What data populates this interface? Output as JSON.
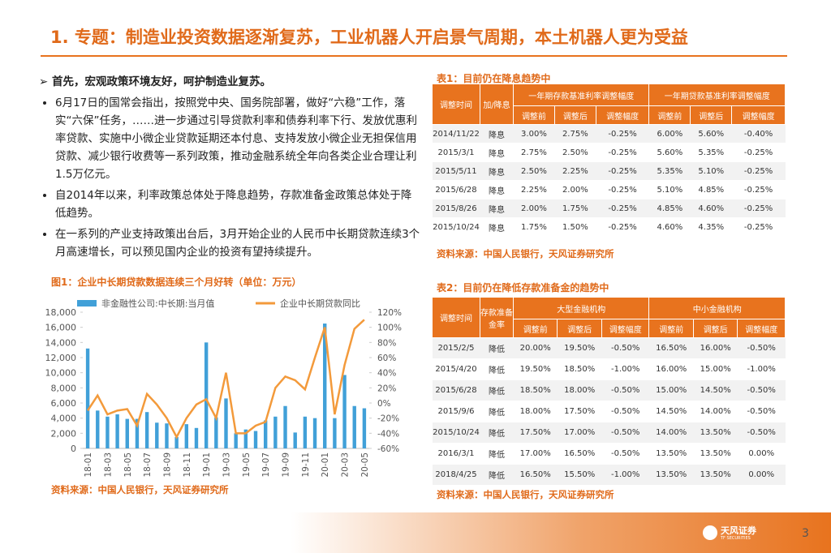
{
  "header": {
    "title": "1. 专题：制造业投资数据逐渐复苏，工业机器人开启景气周期，本土机器人更为受益"
  },
  "text": {
    "heading": "首先，宏观政策环境友好，呵护制造业复苏。",
    "bullets": [
      "6月17日的国常会指出，按照党中央、国务院部署，做好“六稳”工作，落实“六保”任务，……进一步通过引导贷款利率和债券利率下行、发放优惠利率贷款、实施中小微企业贷款延期还本付息、支持发放小微企业无担保信用贷款、减少银行收费等一系列政策，推动金融系统全年向各类企业合理让利1.5万亿元。",
      "自2014年以来，利率政策总体处于降息趋势，存款准备金政策总体处于降低趋势。",
      "在一系列的产业支持政策出台后，3月开始企业的人民币中长期贷款连续3个月高速增长，可以预见国内企业的投资有望持续提升。"
    ]
  },
  "chart_data": {
    "type": "bar",
    "title": "图1：企业中长期贷款数据连续三个月好转（单位：万元）",
    "categories": [
      "18-01",
      null,
      "18-03",
      null,
      "18-05",
      null,
      "18-07",
      null,
      "18-09",
      null,
      "18-11",
      null,
      "19-01",
      null,
      "19-03",
      null,
      "19-05",
      null,
      "19-07",
      null,
      "19-09",
      null,
      "19-11",
      null,
      "20-01",
      null,
      "20-03",
      null,
      "20-05"
    ],
    "series": [
      {
        "name": "非金融性公司:中长期:当月值",
        "color": "#41a0d8",
        "type": "bar",
        "values": [
          13200,
          5000,
          4200,
          4500,
          3900,
          3900,
          4800,
          3400,
          3300,
          1500,
          3200,
          2700,
          14000,
          4100,
          6600,
          2000,
          2500,
          2300,
          3700,
          4200,
          5600,
          2100,
          4200,
          4000,
          16500,
          4000,
          9700,
          5600,
          5300
        ]
      },
      {
        "name": "企业中长期贷款同比",
        "color": "#f39a3b",
        "type": "line",
        "axis": "y2",
        "values": [
          -10,
          10,
          -15,
          -10,
          -8,
          -30,
          12,
          -2,
          -20,
          -45,
          -20,
          -2,
          5,
          -20,
          40,
          -40,
          -40,
          -30,
          -25,
          20,
          35,
          30,
          18,
          60,
          100,
          -15,
          50,
          98,
          110
        ]
      }
    ],
    "ylim": [
      0,
      18000
    ],
    "yticks": [
      0,
      {
        "value": 2000,
        "label": "2,000"
      },
      {
        "value": 4000,
        "label": "4,000"
      },
      {
        "value": 6000,
        "label": "6,000"
      },
      {
        "value": 8000,
        "label": "8,000"
      },
      {
        "value": 10000,
        "label": "10,000"
      },
      {
        "value": 12000,
        "label": "12,000"
      },
      {
        "value": 14000,
        "label": "14,000"
      },
      {
        "value": 16000,
        "label": "16,000"
      },
      {
        "value": 18000,
        "label": "18,000"
      }
    ],
    "y2lim": [
      -60,
      120
    ],
    "y2ticks": [
      {
        "value": -60,
        "label": "-60%"
      },
      {
        "value": -40,
        "label": "-40%"
      },
      {
        "value": -20,
        "label": "-20%"
      },
      {
        "value": 0,
        "label": "0%"
      },
      {
        "value": 20,
        "label": "20%"
      },
      {
        "value": 40,
        "label": "40%"
      },
      {
        "value": 60,
        "label": "60%"
      },
      {
        "value": 80,
        "label": "80%"
      },
      {
        "value": 100,
        "label": "100%"
      },
      {
        "value": 120,
        "label": "120%"
      }
    ],
    "source": "资料来源：中国人民银行，天风证券研究所"
  },
  "table1": {
    "title": "表1：目前仍在降息趋势中",
    "head": [
      "调整时间",
      "加/降息",
      "一年期存款基准利率调整幅度",
      "一年期贷款基准利率调整幅度"
    ],
    "subhead": [
      "调整前",
      "调整后",
      "调整幅度",
      "调整前",
      "调整后",
      "调整幅度"
    ],
    "rows": [
      [
        "2014/11/22",
        "降息",
        "3.00%",
        "2.75%",
        "-0.25%",
        "6.00%",
        "5.60%",
        "-0.40%"
      ],
      [
        "2015/3/1",
        "降息",
        "2.75%",
        "2.50%",
        "-0.25%",
        "5.60%",
        "5.35%",
        "-0.25%"
      ],
      [
        "2015/5/11",
        "降息",
        "2.50%",
        "2.25%",
        "-0.25%",
        "5.35%",
        "5.10%",
        "-0.25%"
      ],
      [
        "2015/6/28",
        "降息",
        "2.25%",
        "2.00%",
        "-0.25%",
        "5.10%",
        "4.85%",
        "-0.25%"
      ],
      [
        "2015/8/26",
        "降息",
        "2.00%",
        "1.75%",
        "-0.25%",
        "4.85%",
        "4.60%",
        "-0.25%"
      ],
      [
        "2015/10/24",
        "降息",
        "1.75%",
        "1.50%",
        "-0.25%",
        "4.60%",
        "4.35%",
        "-0.25%"
      ]
    ],
    "source": "资料来源：中国人民银行，天风证券研究所"
  },
  "table2": {
    "title": "表2：目前仍在降低存款准备金的趋势中",
    "head": [
      "调整时间",
      "存款准备金率",
      "大型金融机构",
      "中小金融机构"
    ],
    "subhead": [
      "调整前",
      "调整后",
      "调整幅度",
      "调整前",
      "调整后",
      "调整幅度"
    ],
    "rows": [
      [
        "2015/2/5",
        "降低",
        "20.00%",
        "19.50%",
        "-0.50%",
        "16.50%",
        "16.00%",
        "-0.50%"
      ],
      [
        "2015/4/20",
        "降低",
        "19.50%",
        "18.50%",
        "-1.00%",
        "16.00%",
        "15.00%",
        "-1.00%"
      ],
      [
        "2015/6/28",
        "降低",
        "18.50%",
        "18.00%",
        "-0.50%",
        "15.00%",
        "14.50%",
        "-0.50%"
      ],
      [
        "2015/9/6",
        "降低",
        "18.00%",
        "17.50%",
        "-0.50%",
        "14.50%",
        "14.00%",
        "-0.50%"
      ],
      [
        "2015/10/24",
        "降低",
        "17.50%",
        "17.00%",
        "-0.50%",
        "14.00%",
        "13.50%",
        "-0.50%"
      ],
      [
        "2016/3/1",
        "降低",
        "17.00%",
        "16.50%",
        "-0.50%",
        "13.50%",
        "13.50%",
        "0.00%"
      ],
      [
        "2018/4/25",
        "降低",
        "16.50%",
        "15.50%",
        "-1.00%",
        "13.50%",
        "13.50%",
        "0.00%"
      ]
    ],
    "source": "资料来源：中国人民银行，天风证券研究所"
  },
  "footer": {
    "brand": "天风证券",
    "brand_en": "TF SECURITIES",
    "page": "3"
  }
}
